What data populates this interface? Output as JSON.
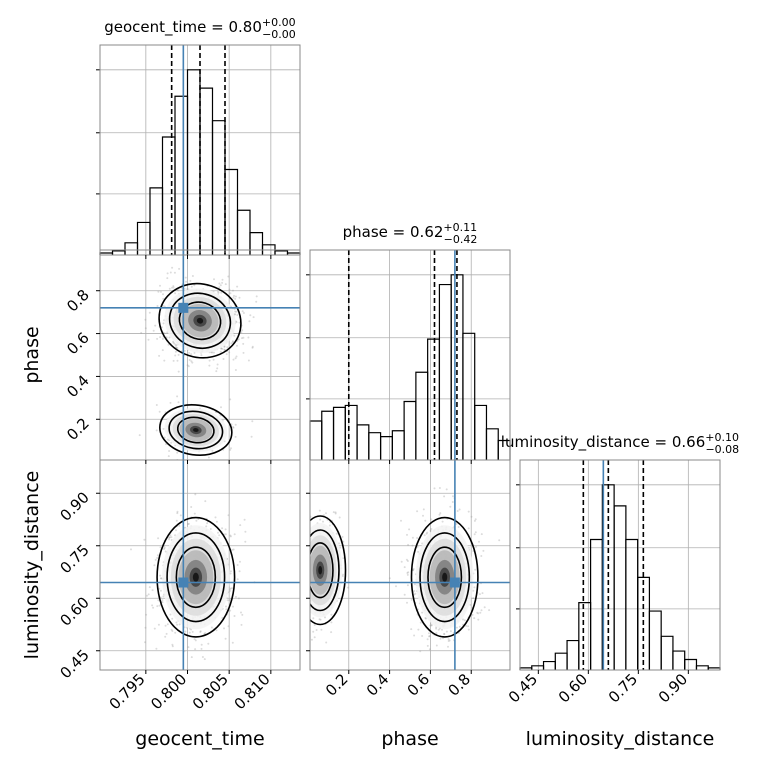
{
  "chart_data": {
    "type": "corner",
    "parameters": [
      {
        "name": "geocent_time",
        "title": "geocent_time",
        "median": "0.80",
        "plus": "+0.00",
        "minus": "−0.00",
        "quantiles": [
          0.7981,
          0.8015,
          0.8045
        ],
        "truth": 0.7995,
        "range": [
          0.7895,
          0.8135
        ],
        "ticks": [
          0.795,
          0.8,
          0.805,
          0.81
        ],
        "tick_labels": [
          "0.795",
          "0.800",
          "0.805",
          "0.810"
        ]
      },
      {
        "name": "phase",
        "title": "phase",
        "median": "0.62",
        "plus": "+0.11",
        "minus": "−0.42",
        "quantiles": [
          0.2,
          0.62,
          0.73
        ],
        "truth": 0.72,
        "range": [
          0.01,
          0.99
        ],
        "ticks": [
          0.2,
          0.4,
          0.6,
          0.8
        ],
        "tick_labels": [
          "0.2",
          "0.4",
          "0.6",
          "0.8"
        ]
      },
      {
        "name": "luminosity_distance",
        "title": "luminosity_distance",
        "median": "0.66",
        "plus": "+0.10",
        "minus": "−0.08",
        "quantiles": [
          0.585,
          0.66,
          0.765
        ],
        "truth": 0.645,
        "range": [
          0.395,
          0.995
        ],
        "ticks": [
          0.45,
          0.6,
          0.75,
          0.9
        ],
        "tick_labels": [
          "0.45",
          "0.60",
          "0.75",
          "0.90"
        ]
      }
    ],
    "histograms": [
      {
        "param": "geocent_time",
        "counts": [
          1,
          2,
          6,
          16,
          33,
          58,
          78,
          91,
          82,
          66,
          42,
          22,
          11,
          5,
          2,
          1
        ]
      },
      {
        "param": "phase",
        "counts": [
          20,
          25,
          27,
          28,
          18,
          14,
          12,
          15,
          30,
          45,
          62,
          90,
          95,
          65,
          28,
          16,
          10
        ]
      },
      {
        "param": "luminosity_distance",
        "counts": [
          1,
          2,
          4,
          8,
          14,
          32,
          62,
          88,
          78,
          62,
          44,
          28,
          16,
          9,
          5,
          2,
          1
        ]
      }
    ],
    "colors": {
      "hist": "#000000",
      "quantile": "#000000",
      "truth": "#4682b4",
      "points": "#9a9a9a",
      "grid": "#b0b0b0"
    },
    "grid": true
  }
}
